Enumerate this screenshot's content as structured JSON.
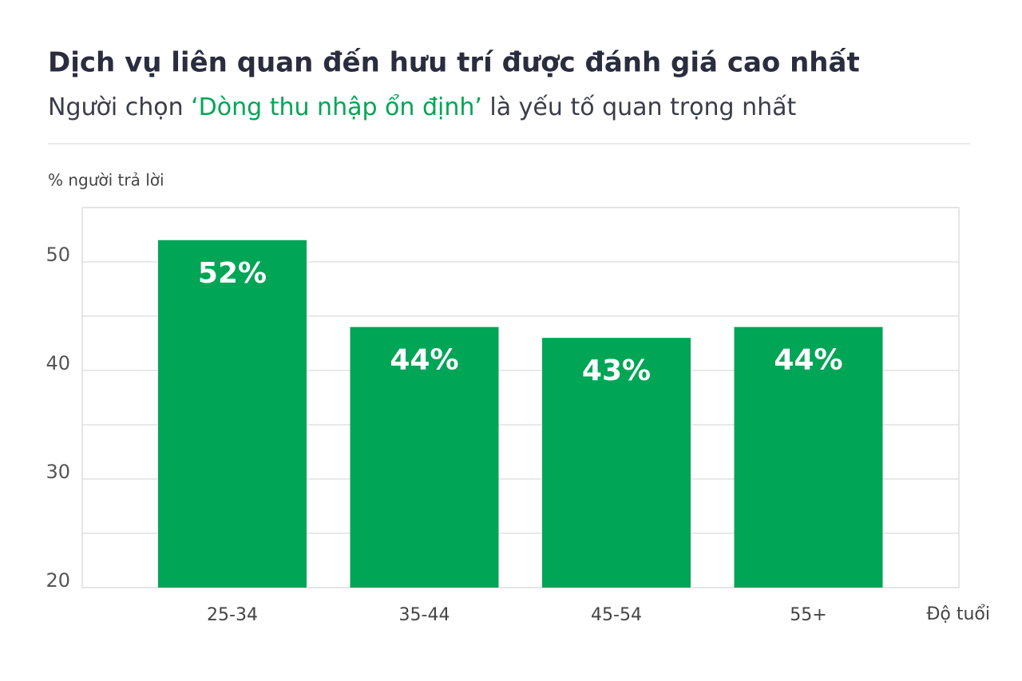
{
  "chart_data": {
    "type": "bar",
    "title": "Dịch vụ liên quan đến hưu trí được đánh giá cao nhất",
    "subtitle": [
      "Người chọn ",
      "‘Dòng thu nhập ổn định’",
      " là yếu tố quan trọng nhất"
    ],
    "y_label": "% người trả lời",
    "x_label": "Độ tuổi",
    "categories": [
      "25-34",
      "35-44",
      "45-54",
      "55+"
    ],
    "values": [
      52,
      44,
      43,
      44
    ],
    "value_labels": [
      "52%",
      "44%",
      "43%",
      "44%"
    ],
    "color": "#00a556",
    "highlight_color": "#00a556",
    "ylim": [
      20,
      55
    ],
    "yticks": [
      20,
      30,
      40,
      50
    ],
    "minor_yticks": [
      25,
      35,
      45,
      55
    ],
    "grid": true
  }
}
